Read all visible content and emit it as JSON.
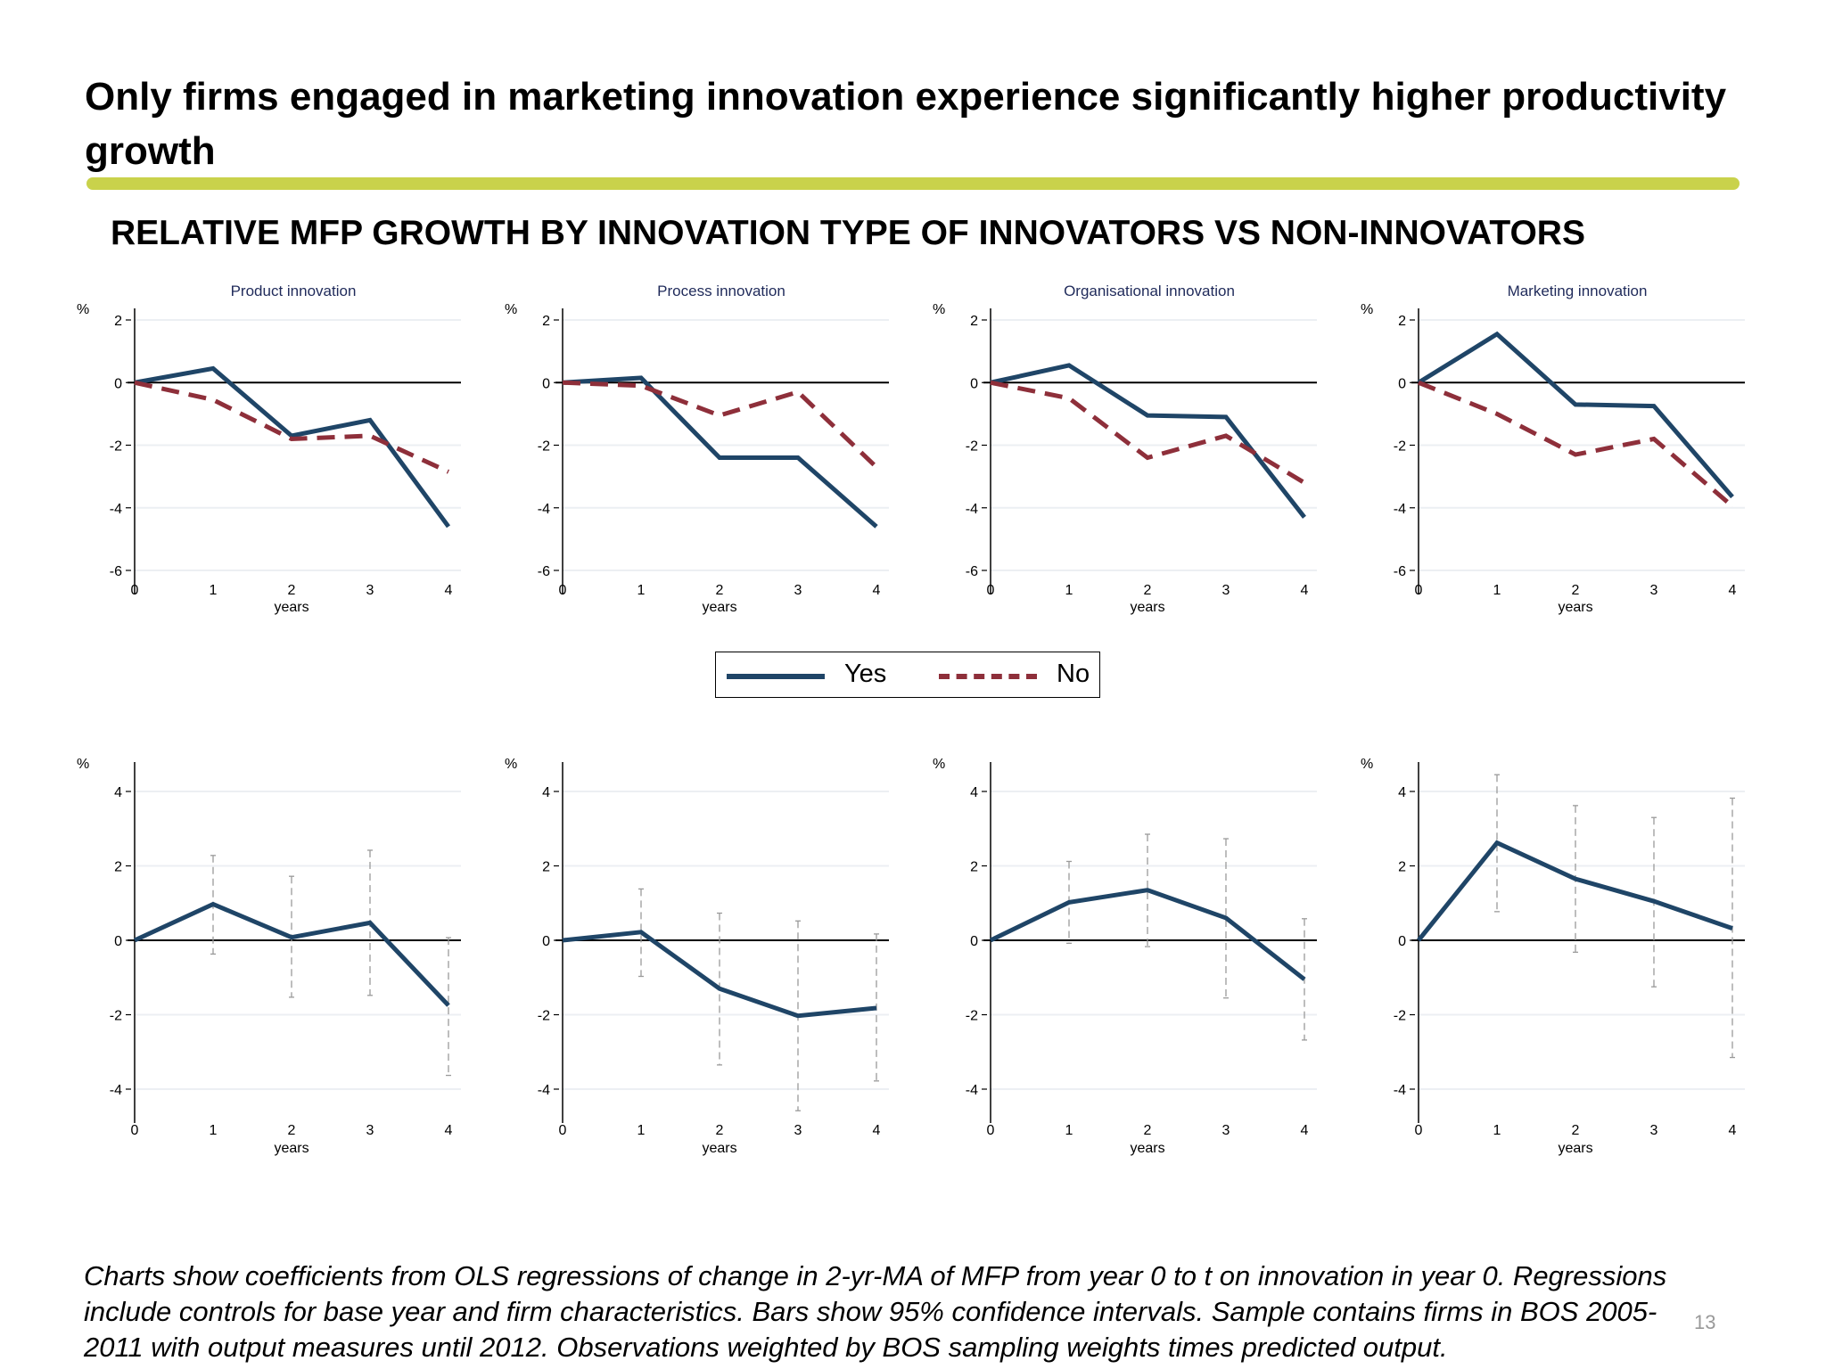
{
  "slide": {
    "title": "Only firms engaged in marketing innovation experience significantly higher productivity growth",
    "subtitle": "RELATIVE MFP GROWTH BY INNOVATION TYPE OF INNOVATORS VS NON-INNOVATORS",
    "footnote": "Charts show coefficients from OLS regressions of change in 2-yr-MA of MFP from year 0 to t on innovation in year 0. Regressions include controls for base year and firm characteristics. Bars show 95% confidence intervals. Sample contains firms in BOS 2005-2011 with output measures until 2012. Observations weighted by BOS sampling weights times predicted output.",
    "page_number": "13",
    "accent_color": "#c9d24b"
  },
  "legend": {
    "position": "center",
    "items": [
      {
        "label": "Yes",
        "color": "#1f4567",
        "style": "solid"
      },
      {
        "label": "No",
        "color": "#8e2f3a",
        "style": "dashed"
      }
    ]
  },
  "chart_data": [
    {
      "type": "line",
      "title": "Product innovation",
      "xlabel": "years",
      "ylabel": "%",
      "x": [
        0,
        1,
        2,
        3,
        4
      ],
      "ylim": [
        -6,
        2
      ],
      "yticks": [
        -6,
        -4,
        -2,
        0,
        2
      ],
      "grid": true,
      "series": [
        {
          "name": "Yes",
          "color": "#1f4567",
          "values": [
            0,
            0.45,
            -1.7,
            -1.2,
            -4.6
          ]
        },
        {
          "name": "No",
          "color": "#8e2f3a",
          "dashed": true,
          "values": [
            0,
            -0.55,
            -1.8,
            -1.7,
            -2.85
          ]
        }
      ]
    },
    {
      "type": "line",
      "title": "Process innovation",
      "xlabel": "years",
      "ylabel": "%",
      "x": [
        0,
        1,
        2,
        3,
        4
      ],
      "ylim": [
        -6,
        2
      ],
      "yticks": [
        -6,
        -4,
        -2,
        0,
        2
      ],
      "grid": true,
      "series": [
        {
          "name": "Yes",
          "color": "#1f4567",
          "values": [
            0,
            0.15,
            -2.4,
            -2.4,
            -4.6
          ]
        },
        {
          "name": "No",
          "color": "#8e2f3a",
          "dashed": true,
          "values": [
            0,
            -0.1,
            -1.05,
            -0.3,
            -2.7
          ]
        }
      ]
    },
    {
      "type": "line",
      "title": "Organisational innovation",
      "xlabel": "years",
      "ylabel": "%",
      "x": [
        0,
        1,
        2,
        3,
        4
      ],
      "ylim": [
        -6,
        2
      ],
      "yticks": [
        -6,
        -4,
        -2,
        0,
        2
      ],
      "grid": true,
      "series": [
        {
          "name": "Yes",
          "color": "#1f4567",
          "values": [
            0,
            0.55,
            -1.05,
            -1.1,
            -4.3
          ]
        },
        {
          "name": "No",
          "color": "#8e2f3a",
          "dashed": true,
          "values": [
            0,
            -0.5,
            -2.4,
            -1.7,
            -3.2
          ]
        }
      ]
    },
    {
      "type": "line",
      "title": "Marketing innovation",
      "xlabel": "years",
      "ylabel": "%",
      "x": [
        0,
        1,
        2,
        3,
        4
      ],
      "ylim": [
        -6,
        2
      ],
      "yticks": [
        -6,
        -4,
        -2,
        0,
        2
      ],
      "grid": true,
      "series": [
        {
          "name": "Yes",
          "color": "#1f4567",
          "values": [
            0,
            1.55,
            -0.7,
            -0.75,
            -3.65
          ]
        },
        {
          "name": "No",
          "color": "#8e2f3a",
          "dashed": true,
          "values": [
            0,
            -1.0,
            -2.3,
            -1.8,
            -3.95
          ]
        }
      ]
    },
    {
      "type": "line",
      "title": "",
      "xlabel": "years",
      "ylabel": "%",
      "x": [
        0,
        1,
        2,
        3,
        4
      ],
      "ylim": [
        -4.8,
        4.8
      ],
      "yticks": [
        -4,
        -2,
        0,
        2,
        4
      ],
      "grid": true,
      "series": [
        {
          "color": "#1f4567",
          "values": [
            0,
            0.97,
            0.08,
            0.47,
            -1.75
          ],
          "ci_low": [
            null,
            -0.37,
            -1.53,
            -1.48,
            -3.63
          ],
          "ci_high": [
            null,
            2.28,
            1.72,
            2.42,
            0.07
          ]
        }
      ]
    },
    {
      "type": "line",
      "title": "",
      "xlabel": "years",
      "ylabel": "%",
      "x": [
        0,
        1,
        2,
        3,
        4
      ],
      "ylim": [
        -4.8,
        4.8
      ],
      "yticks": [
        -4,
        -2,
        0,
        2,
        4
      ],
      "grid": true,
      "series": [
        {
          "color": "#1f4567",
          "values": [
            0,
            0.22,
            -1.3,
            -2.03,
            -1.82
          ],
          "ci_low": [
            null,
            -0.97,
            -3.35,
            -4.58,
            -3.78
          ],
          "ci_high": [
            null,
            1.38,
            0.73,
            0.52,
            0.17
          ]
        }
      ]
    },
    {
      "type": "line",
      "title": "",
      "xlabel": "years",
      "ylabel": "%",
      "x": [
        0,
        1,
        2,
        3,
        4
      ],
      "ylim": [
        -4.8,
        4.8
      ],
      "yticks": [
        -4,
        -2,
        0,
        2,
        4
      ],
      "grid": true,
      "series": [
        {
          "color": "#1f4567",
          "values": [
            0,
            1.02,
            1.35,
            0.6,
            -1.05
          ],
          "ci_low": [
            null,
            -0.08,
            -0.17,
            -1.55,
            -2.68
          ],
          "ci_high": [
            null,
            2.12,
            2.85,
            2.73,
            0.58
          ]
        }
      ]
    },
    {
      "type": "line",
      "title": "",
      "xlabel": "years",
      "ylabel": "%",
      "x": [
        0,
        1,
        2,
        3,
        4
      ],
      "ylim": [
        -4.8,
        4.8
      ],
      "yticks": [
        -4,
        -2,
        0,
        2,
        4
      ],
      "grid": true,
      "series": [
        {
          "color": "#1f4567",
          "values": [
            0,
            2.62,
            1.65,
            1.05,
            0.32
          ],
          "ci_low": [
            null,
            0.77,
            -0.32,
            -1.25,
            -3.15
          ],
          "ci_high": [
            null,
            4.45,
            3.62,
            3.3,
            3.82
          ]
        }
      ]
    }
  ]
}
